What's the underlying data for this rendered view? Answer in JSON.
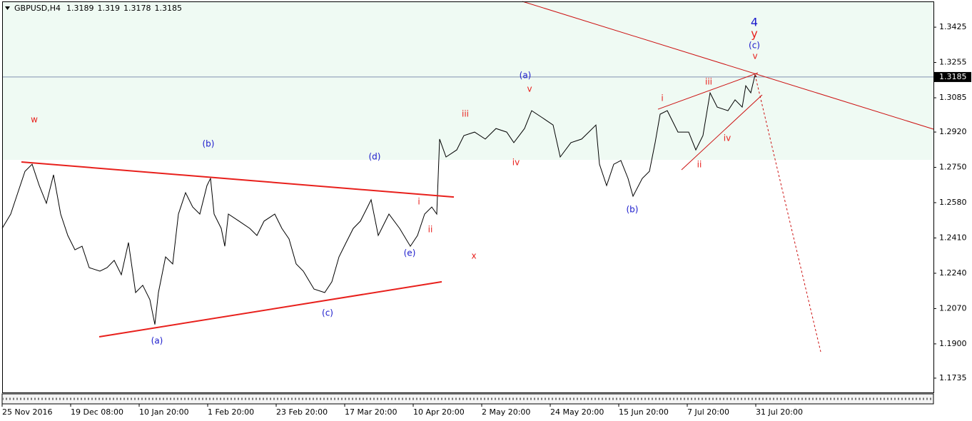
{
  "chart_data": {
    "type": "line",
    "title": "GBPUSD,H4",
    "ohlc": [
      1.3189,
      1.319,
      1.3178,
      1.3185
    ],
    "current_price": 1.3185,
    "xlim": [
      0,
      1305
    ],
    "ylim": [
      1.1666,
      1.3549
    ],
    "xticks": [
      {
        "value": 0,
        "label": "25 Nov 2016"
      },
      {
        "value": 96,
        "label": "19 Dec 08:00"
      },
      {
        "value": 192,
        "label": "10 Jan 20:00"
      },
      {
        "value": 288,
        "label": "1 Feb 20:00"
      },
      {
        "value": 384,
        "label": "23 Feb 20:00"
      },
      {
        "value": 480,
        "label": "17 Mar 20:00"
      },
      {
        "value": 576,
        "label": "10 Apr 20:00"
      },
      {
        "value": 672,
        "label": "2 May 20:00"
      },
      {
        "value": 768,
        "label": "24 May 20:00"
      },
      {
        "value": 864,
        "label": "15 Jun 20:00"
      },
      {
        "value": 960,
        "label": "7 Jul 20:00"
      },
      {
        "value": 1056,
        "label": "31 Jul 20:00"
      }
    ],
    "yticks": [
      1.3425,
      1.3255,
      1.3085,
      {
        "value": 1.292,
        "label": "1.2920"
      },
      {
        "value": 1.275,
        "label": "1.2750"
      },
      {
        "value": 1.258,
        "label": "1.2580"
      },
      {
        "value": 1.241,
        "label": "1.2410"
      },
      {
        "value": 1.224,
        "label": "1.2240"
      },
      {
        "value": 1.207,
        "label": "1.2070"
      },
      {
        "value": 1.19,
        "label": "1.1900"
      },
      1.1735
    ],
    "zone": {
      "ylim": [
        1.2786,
        1.3549
      ],
      "color": "#effaf3"
    },
    "series": [
      {
        "color": "#000000",
        "x": [
          0,
          12,
          22,
          32,
          42,
          52,
          62,
          72,
          82,
          92,
          102,
          112,
          122,
          137,
          147,
          157,
          167,
          177,
          187,
          197,
          207,
          214,
          219,
          229,
          239,
          247,
          257,
          267,
          277,
          287,
          292,
          297,
          307,
          312,
          317,
          332,
          347,
          357,
          367,
          382,
          392,
          402,
          412,
          422,
          437,
          452,
          462,
          472,
          482,
          492,
          502,
          512,
          517,
          527,
          542,
          557,
          572,
          582,
          592,
          602,
          609,
          613,
          622,
          637,
          647,
          662,
          677,
          692,
          707,
          717,
          732,
          742,
          757,
          772,
          782,
          797,
          812,
          822,
          832,
          837,
          847,
          857,
          867,
          877,
          884,
          897,
          907,
          915,
          922,
          932,
          947,
          962,
          972,
          982,
          992,
          1002,
          1017,
          1027,
          1037,
          1042,
          1049,
          1055,
          1057
        ],
        "values": [
          1.2456,
          1.2525,
          1.2628,
          1.2731,
          1.2765,
          1.2662,
          1.2577,
          1.2714,
          1.2525,
          1.2422,
          1.2353,
          1.237,
          1.2267,
          1.225,
          1.2267,
          1.2302,
          1.2233,
          1.2388,
          1.2147,
          1.2182,
          1.2113,
          1.1993,
          1.2147,
          1.2319,
          1.2285,
          1.2525,
          1.2628,
          1.2559,
          1.2525,
          1.2662,
          1.2697,
          1.2525,
          1.2456,
          1.237,
          1.2525,
          1.2491,
          1.2456,
          1.2422,
          1.2491,
          1.2525,
          1.2456,
          1.2405,
          1.2285,
          1.225,
          1.2164,
          1.2147,
          1.2199,
          1.2319,
          1.2388,
          1.2456,
          1.2491,
          1.2559,
          1.2594,
          1.2422,
          1.2525,
          1.2456,
          1.237,
          1.2422,
          1.2525,
          1.2559,
          1.2525,
          1.2886,
          1.28,
          1.2834,
          1.2903,
          1.292,
          1.2886,
          1.2937,
          1.292,
          1.2869,
          1.2937,
          1.3023,
          1.2989,
          1.2954,
          1.28,
          1.2869,
          1.2886,
          1.292,
          1.2954,
          1.2765,
          1.2662,
          1.2765,
          1.2783,
          1.2697,
          1.2611,
          1.2697,
          1.2731,
          1.2869,
          1.3006,
          1.3023,
          1.292,
          1.292,
          1.2834,
          1.2903,
          1.3109,
          1.304,
          1.3023,
          1.3075,
          1.304,
          1.3143,
          1.3109,
          1.3195,
          1.3185
        ]
      }
    ],
    "lines": [
      {
        "x": [
          27,
          633
        ],
        "y": [
          1.2776,
          1.2607
        ],
        "color": "#e8201c",
        "style": "thick"
      },
      {
        "x": [
          136,
          616
        ],
        "y": [
          1.1934,
          1.2199
        ],
        "color": "#e8201c",
        "style": "thick"
      },
      {
        "x": [
          729,
          1305
        ],
        "y": [
          1.3549,
          1.2934
        ],
        "color": "#cc1010",
        "style": "thin"
      },
      {
        "x": [
          919,
          1059
        ],
        "y": [
          1.303,
          1.3205
        ],
        "color": "#cc1010",
        "style": "thin"
      },
      {
        "x": [
          952,
          1065
        ],
        "y": [
          1.2738,
          1.3099
        ],
        "color": "#cc1010",
        "style": "thin"
      },
      {
        "x": [
          1055,
          1147
        ],
        "y": [
          1.3195,
          1.1862
        ],
        "color": "#cc1010",
        "style": "dotted"
      }
    ],
    "annotations": [
      {
        "text": "w",
        "x": 45,
        "y": 1.2978,
        "color": "#e8201c"
      },
      {
        "text": "(b)",
        "x": 289,
        "y": 1.2862,
        "color": "#1a1acc"
      },
      {
        "text": "(d)",
        "x": 522,
        "y": 1.28,
        "color": "#1a1acc"
      },
      {
        "text": "(a)",
        "x": 217,
        "y": 1.1914,
        "color": "#1a1acc"
      },
      {
        "text": "(c)",
        "x": 456,
        "y": 1.2048,
        "color": "#1a1acc"
      },
      {
        "text": "(e)",
        "x": 571,
        "y": 1.2336,
        "color": "#1a1acc"
      },
      {
        "text": "i",
        "x": 584,
        "y": 1.2583,
        "color": "#e8201c"
      },
      {
        "text": "ii",
        "x": 600,
        "y": 1.2449,
        "color": "#e8201c"
      },
      {
        "text": "x",
        "x": 661,
        "y": 1.2322,
        "color": "#e8201c"
      },
      {
        "text": "(a)",
        "x": 733,
        "y": 1.3191,
        "color": "#1a1acc"
      },
      {
        "text": "v",
        "x": 739,
        "y": 1.3126,
        "color": "#e8201c"
      },
      {
        "text": "iii",
        "x": 649,
        "y": 1.3006,
        "color": "#e8201c"
      },
      {
        "text": "iv",
        "x": 720,
        "y": 1.2772,
        "color": "#e8201c"
      },
      {
        "text": "(b)",
        "x": 883,
        "y": 1.2546,
        "color": "#1a1acc"
      },
      {
        "text": "i",
        "x": 925,
        "y": 1.3081,
        "color": "#e8201c"
      },
      {
        "text": "iii",
        "x": 990,
        "y": 1.3161,
        "color": "#e8201c"
      },
      {
        "text": "ii",
        "x": 977,
        "y": 1.2762,
        "color": "#e8201c"
      },
      {
        "text": "iv",
        "x": 1016,
        "y": 1.2889,
        "color": "#e8201c"
      },
      {
        "text": "4",
        "x": 1054,
        "y": 1.3446,
        "color": "#1a1acc",
        "large": true
      },
      {
        "text": "y",
        "x": 1054,
        "y": 1.3391,
        "color": "#e8201c",
        "large": true
      },
      {
        "text": "(c)",
        "x": 1054,
        "y": 1.3336,
        "color": "#1a1acc"
      },
      {
        "text": "v",
        "x": 1055,
        "y": 1.3284,
        "color": "#e8201c"
      }
    ]
  }
}
